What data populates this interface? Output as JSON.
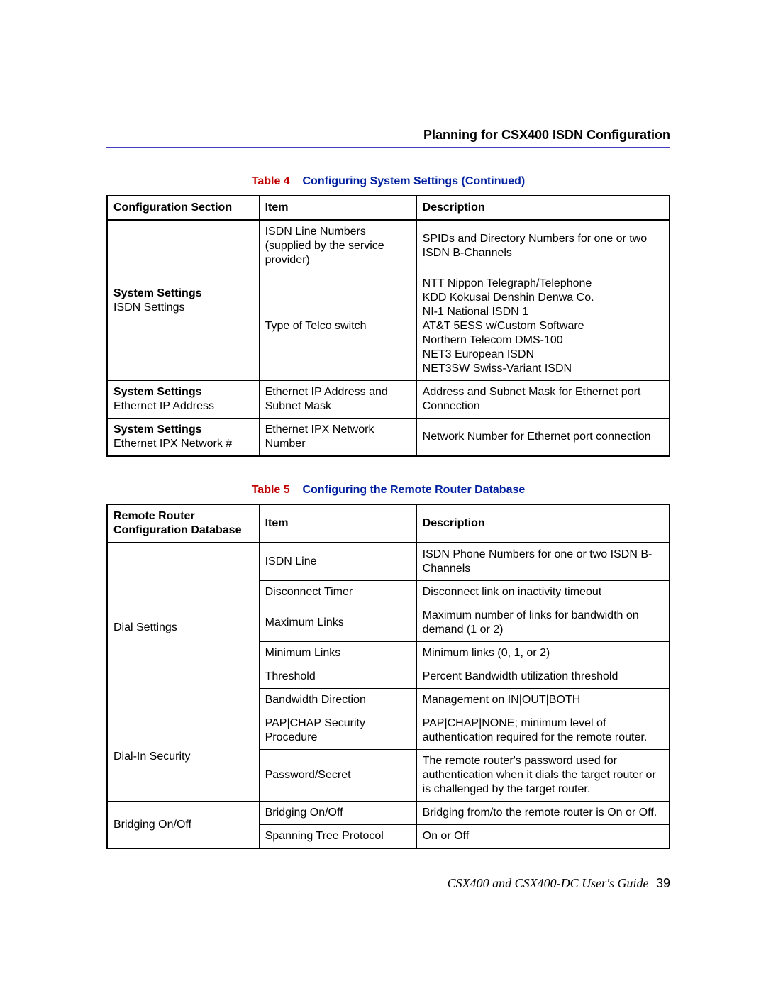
{
  "header": "Planning for CSX400 ISDN Configuration",
  "footer_text": "CSX400 and CSX400-DC User's Guide",
  "page_number": "39",
  "colors": {
    "rule": "#4040c0",
    "caption_prefix": "#c00000",
    "caption_title": "#0020a0",
    "text": "#000000",
    "border": "#000000",
    "background": "#ffffff"
  },
  "t4": {
    "caption_prefix": "Table 4",
    "caption_title": "Configuring System Settings (Continued)",
    "head": [
      "Configuration Section",
      "Item",
      "Description"
    ],
    "r1": {
      "sec_bold": "System Settings",
      "sec_rest": "ISDN Settings",
      "item": "ISDN Line Numbers (supplied by the service provider)",
      "desc": "SPIDs and Directory Numbers for one or two ISDN B-Channels"
    },
    "r2": {
      "item": "Type of Telco switch",
      "desc": "NTT Nippon Telegraph/Telephone\nKDD Kokusai Denshin Denwa Co.\nNI-1 National ISDN 1\nAT&T 5ESS w/Custom Software\nNorthern Telecom DMS-100\nNET3 European ISDN\nNET3SW Swiss-Variant ISDN"
    },
    "r3": {
      "sec_bold": "System Settings",
      "sec_rest": "Ethernet IP Address",
      "item": "Ethernet IP Address and Subnet Mask",
      "desc": "Address and Subnet Mask for Ethernet port Connection"
    },
    "r4": {
      "sec_bold": "System Settings",
      "sec_rest": "Ethernet IPX Network #",
      "item": "Ethernet IPX Network Number",
      "desc": "Network Number for Ethernet port connection"
    }
  },
  "t5": {
    "caption_prefix": "Table 5",
    "caption_title": "Configuring the Remote Router Database",
    "head": [
      "Remote Router Configuration Database",
      "Item",
      "Description"
    ],
    "g1": {
      "sec": "Dial Settings",
      "r1": {
        "item": "ISDN Line",
        "desc": "ISDN Phone Numbers for one or two ISDN B-Channels"
      },
      "r2": {
        "item": "Disconnect Timer",
        "desc": "Disconnect link on inactivity timeout"
      },
      "r3": {
        "item": "Maximum Links",
        "desc": "Maximum number of links for bandwidth on demand (1 or 2)"
      },
      "r4": {
        "item": "Minimum Links",
        "desc": "Minimum links (0, 1, or 2)"
      },
      "r5": {
        "item": "Threshold",
        "desc": "Percent Bandwidth utilization threshold"
      },
      "r6": {
        "item": "Bandwidth Direction",
        "desc": "Management on IN|OUT|BOTH"
      }
    },
    "g2": {
      "sec": "Dial-In Security",
      "r1": {
        "item": "PAP|CHAP Security Procedure",
        "desc": "PAP|CHAP|NONE; minimum level of authentication required for the remote router."
      },
      "r2": {
        "item": "Password/Secret",
        "desc": "The remote router's password used for authentication when it dials the target router or is challenged by the target router."
      }
    },
    "g3": {
      "sec": "Bridging On/Off",
      "r1": {
        "item": "Bridging On/Off",
        "desc": "Bridging from/to the remote router is On or Off."
      },
      "r2": {
        "item": "Spanning Tree Protocol",
        "desc": "On or Off"
      }
    }
  }
}
